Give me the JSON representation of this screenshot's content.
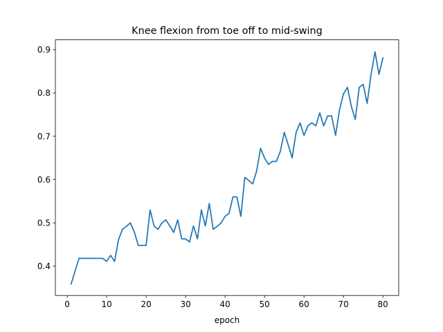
{
  "chart_data": {
    "type": "line",
    "title": "Knee flexion from toe off to mid-swing",
    "xlabel": "epoch",
    "ylabel": "",
    "xlim": [
      -3,
      84
    ],
    "ylim": [
      0.3323,
      0.9227
    ],
    "xticks": [
      0,
      10,
      20,
      30,
      40,
      50,
      60,
      70,
      80
    ],
    "xtick_labels": [
      "0",
      "10",
      "20",
      "30",
      "40",
      "50",
      "60",
      "70",
      "80"
    ],
    "yticks": [
      0.4,
      0.5,
      0.6,
      0.7,
      0.8,
      0.9
    ],
    "ytick_labels": [
      "0.4",
      "0.5",
      "0.6",
      "0.7",
      "0.8",
      "0.9"
    ],
    "grid": false,
    "series": [
      {
        "color": "#1f77b4",
        "x": [
          1,
          2,
          3,
          4,
          5,
          6,
          7,
          8,
          9,
          10,
          11,
          12,
          13,
          14,
          15,
          16,
          17,
          18,
          19,
          20,
          21,
          22,
          23,
          24,
          25,
          26,
          27,
          28,
          29,
          30,
          31,
          32,
          33,
          34,
          35,
          36,
          37,
          38,
          39,
          40,
          41,
          42,
          43,
          44,
          45,
          46,
          47,
          48,
          49,
          50,
          51,
          52,
          53,
          54,
          55,
          56,
          57,
          58,
          59,
          60,
          61,
          62,
          63,
          64,
          65,
          66,
          67,
          68,
          69,
          70,
          71,
          72,
          73,
          74,
          75,
          76,
          77,
          78,
          79,
          80
        ],
        "values": [
          0.359,
          0.389,
          0.418,
          0.418,
          0.418,
          0.418,
          0.418,
          0.418,
          0.418,
          0.411,
          0.425,
          0.411,
          0.461,
          0.485,
          0.492,
          0.5,
          0.479,
          0.448,
          0.448,
          0.448,
          0.53,
          0.493,
          0.485,
          0.5,
          0.507,
          0.493,
          0.478,
          0.507,
          0.463,
          0.463,
          0.456,
          0.493,
          0.463,
          0.53,
          0.493,
          0.545,
          0.485,
          0.492,
          0.5,
          0.515,
          0.522,
          0.56,
          0.56,
          0.515,
          0.605,
          0.598,
          0.59,
          0.62,
          0.672,
          0.65,
          0.635,
          0.642,
          0.642,
          0.665,
          0.709,
          0.68,
          0.65,
          0.709,
          0.731,
          0.702,
          0.724,
          0.731,
          0.724,
          0.754,
          0.724,
          0.747,
          0.747,
          0.702,
          0.761,
          0.798,
          0.813,
          0.769,
          0.739,
          0.813,
          0.82,
          0.776,
          0.843,
          0.895,
          0.843,
          0.881
        ]
      }
    ]
  }
}
